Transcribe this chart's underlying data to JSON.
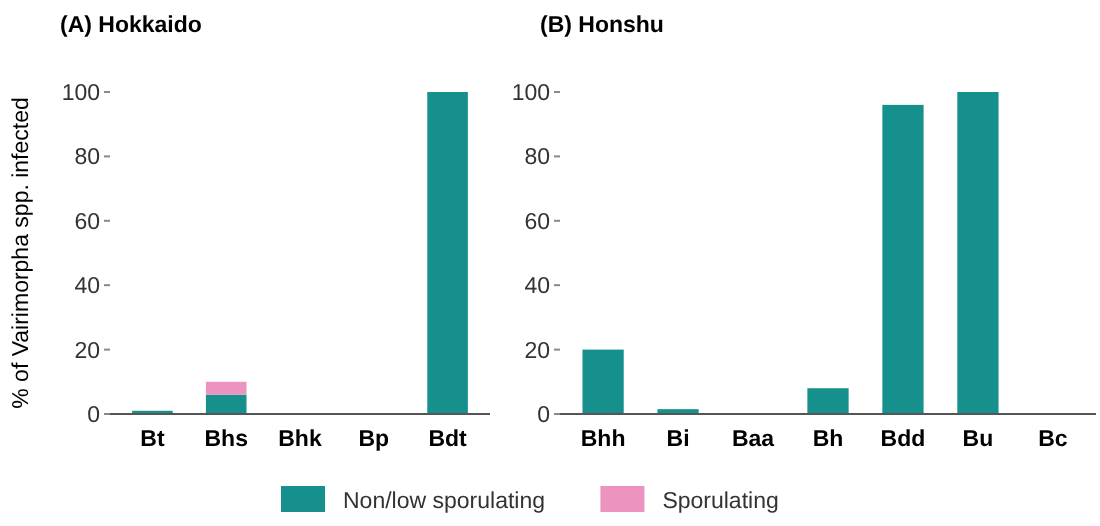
{
  "chart_data": [
    {
      "type": "bar",
      "title": "(A) Hokkaido",
      "ylabel": "% of Vairimorpha spp. infected",
      "categories": [
        "Bt",
        "Bhs",
        "Bhk",
        "Bp",
        "Bdt"
      ],
      "stacked": true,
      "ylim": [
        0,
        100
      ],
      "yticks": [
        0,
        20,
        40,
        60,
        80,
        100
      ],
      "legend": "bottom",
      "series": [
        {
          "name": "Non/low sporulating",
          "color": "#15908d",
          "values": [
            1,
            6,
            0,
            0,
            100
          ]
        },
        {
          "name": "Sporulating",
          "color": "#ec94bf",
          "values": [
            0,
            4,
            0,
            0,
            0
          ]
        }
      ]
    },
    {
      "type": "bar",
      "title": "(B) Honshu",
      "categories": [
        "Bhh",
        "Bi",
        "Baa",
        "Bh",
        "Bdd",
        "Bu",
        "Bc"
      ],
      "stacked": true,
      "ylim": [
        0,
        100
      ],
      "yticks": [
        0,
        20,
        40,
        60,
        80,
        100
      ],
      "series": [
        {
          "color": "#15908d",
          "values": [
            20,
            1.5,
            0,
            8,
            96,
            100,
            0
          ]
        }
      ]
    }
  ]
}
